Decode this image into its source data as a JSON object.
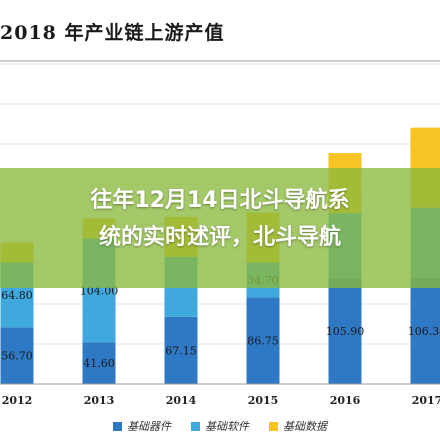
{
  "title": "2018 年产业链上游产值",
  "overlay": {
    "line1": "往年12月14日北斗导航系",
    "line2": "统的实时述评，北斗导航"
  },
  "chart_data": {
    "type": "bar",
    "stacked": true,
    "categories": [
      "2012",
      "2013",
      "2014",
      "2015",
      "2016",
      "2017"
    ],
    "series": [
      {
        "name": "基础器件",
        "color": "#2f78c4",
        "values": [
          56.7,
          41.6,
          67.15,
          86.75,
          105.9,
          106.34
        ]
      },
      {
        "name": "基础软件",
        "color": "#3fa9dd",
        "values": [
          64.8,
          104.0,
          60.0,
          34.7,
          65.0,
          70.0
        ]
      },
      {
        "name": "基础数据",
        "color": "#f7c325",
        "values": [
          20.0,
          20.0,
          40.0,
          50.0,
          60.0,
          80.0
        ]
      }
    ],
    "data_labels": [
      [
        "56.70",
        "64.80",
        ""
      ],
      [
        "41.60",
        "104.00",
        ""
      ],
      [
        "67.15",
        "",
        ""
      ],
      [
        "86.75",
        "34.70",
        ""
      ],
      [
        "105.90",
        "",
        ""
      ],
      [
        "106.34",
        "",
        ""
      ]
    ],
    "ylim": [
      0,
      320
    ],
    "grid": true
  }
}
